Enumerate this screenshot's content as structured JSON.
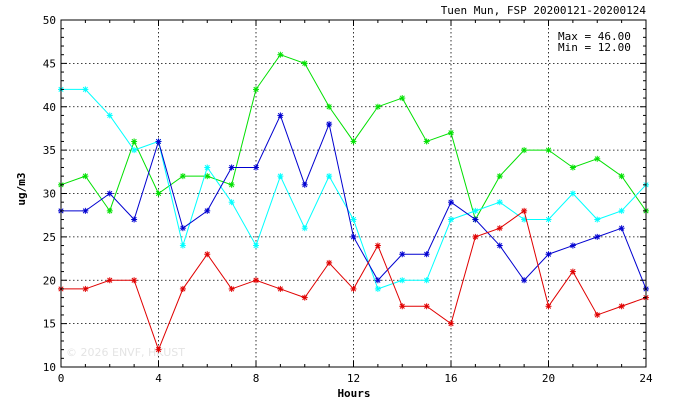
{
  "chart_data": {
    "type": "line",
    "title": "Tuen Mun, FSP 20200121-20200124",
    "xlabel": "Hours",
    "ylabel": "ug/m3",
    "xlim": [
      0,
      24
    ],
    "ylim": [
      10,
      50
    ],
    "x_ticks": [
      0,
      4,
      8,
      12,
      16,
      20,
      24
    ],
    "y_ticks": [
      10,
      15,
      20,
      25,
      30,
      35,
      40,
      45,
      50
    ],
    "grid": true,
    "max_label": "Max = 46.00",
    "min_label": "Min = 12.00",
    "watermark": "© 2026 ENVF, HKUST",
    "x": [
      0,
      1,
      2,
      3,
      4,
      5,
      6,
      7,
      8,
      9,
      10,
      11,
      12,
      13,
      14,
      15,
      16,
      17,
      18,
      19,
      20,
      21,
      22,
      23,
      24
    ],
    "series": [
      {
        "color": "#00e000",
        "values": [
          31,
          32,
          28,
          36,
          30,
          32,
          32,
          31,
          42,
          46,
          45,
          40,
          36,
          40,
          41,
          36,
          37,
          27,
          32,
          35,
          35,
          33,
          34,
          32,
          28
        ]
      },
      {
        "color": "#00ffff",
        "values": [
          42,
          42,
          39,
          35,
          36,
          24,
          33,
          29,
          24,
          32,
          26,
          32,
          27,
          19,
          20,
          20,
          27,
          28,
          29,
          27,
          27,
          30,
          27,
          28,
          31
        ]
      },
      {
        "color": "#0000d0",
        "values": [
          28,
          28,
          30,
          27,
          36,
          26,
          28,
          33,
          33,
          39,
          31,
          38,
          25,
          20,
          23,
          23,
          29,
          27,
          24,
          20,
          23,
          24,
          25,
          26,
          19
        ]
      },
      {
        "color": "#e00000",
        "values": [
          19,
          19,
          20,
          20,
          12,
          19,
          23,
          19,
          20,
          19,
          18,
          22,
          19,
          24,
          17,
          17,
          15,
          25,
          26,
          28,
          17,
          21,
          16,
          17,
          18
        ]
      }
    ]
  }
}
